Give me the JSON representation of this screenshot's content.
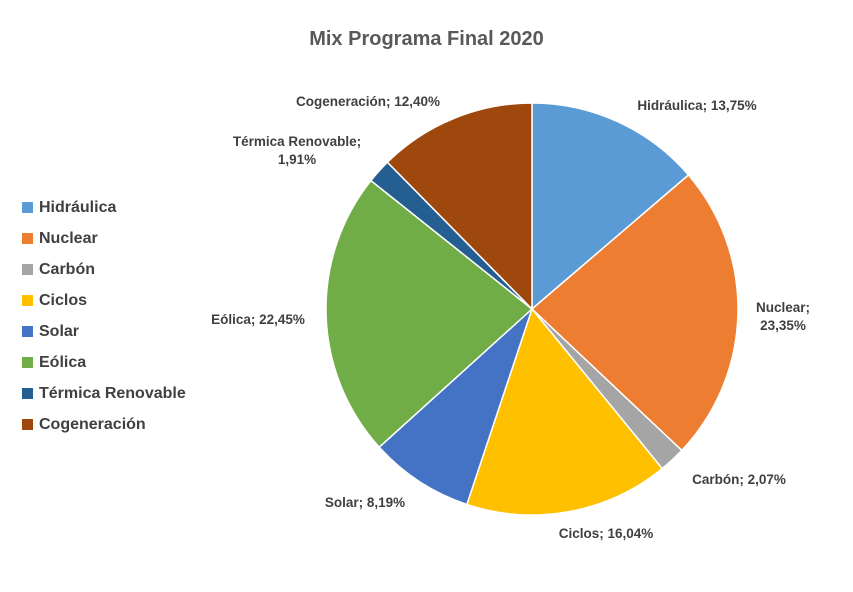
{
  "chart_data": {
    "type": "pie",
    "title": "Mix Programa Final 2020",
    "categories": [
      "Hidráulica",
      "Nuclear",
      "Carbón",
      "Ciclos",
      "Solar",
      "Eólica",
      "Térmica Renovable",
      "Cogeneración"
    ],
    "values": [
      13.75,
      23.35,
      2.07,
      16.04,
      8.19,
      22.45,
      1.91,
      12.4
    ],
    "data_labels": [
      [
        "Hidráulica; 13,75%"
      ],
      [
        "Nuclear;",
        "23,35%"
      ],
      [
        "Carbón; 2,07%"
      ],
      [
        "Ciclos; 16,04%"
      ],
      [
        "Solar; 8,19%"
      ],
      [
        "Eólica; 22,45%"
      ],
      [
        "Térmica Renovable;",
        "1,91%"
      ],
      [
        "Cogeneración; 12,40%"
      ]
    ],
    "colors": [
      "#5B9BD5",
      "#ED7D31",
      "#A5A5A5",
      "#FFC000",
      "#4472C4",
      "#70AD47",
      "#255E91",
      "#9E480E"
    ],
    "legend_position": "left"
  }
}
